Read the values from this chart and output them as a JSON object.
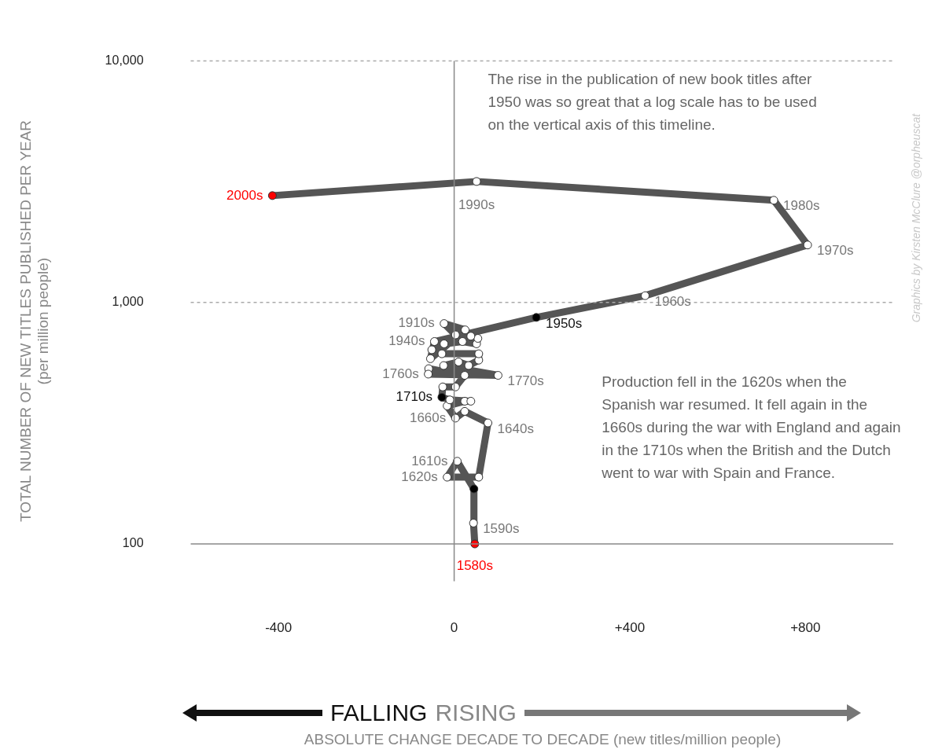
{
  "chart_data": {
    "type": "line",
    "ylabel": "TOTAL NUMBER OF NEW TITLES PUBLISHED PER YEAR\n(per million people)",
    "series": [
      {
        "type": "line",
        "color": "#555555",
        "x": [
          47,
          44,
          45,
          7,
          -16,
          56,
          77,
          24,
          3,
          -16,
          24,
          38,
          -10,
          -28,
          -26,
          3,
          24,
          -58,
          -59,
          100,
          -24,
          10,
          33,
          56,
          56,
          -28,
          -51,
          -23,
          19,
          51,
          54,
          38,
          3,
          -23,
          25,
          -54,
          -45,
          187,
          435,
          805,
          728,
          51,
          -414
        ],
        "values": [
          100,
          122,
          169,
          220,
          189,
          189,
          317,
          354,
          332,
          373,
          390,
          390,
          395,
          405,
          447,
          447,
          499,
          532,
          505,
          499,
          548,
          567,
          548,
          577,
          613,
          613,
          637,
          674,
          689,
          674,
          710,
          725,
          734,
          818,
          770,
          585,
          689,
          867,
          1067,
          1730,
          2650,
          3170,
          2770
        ],
        "colors": [
          "#ff0000",
          "#ffffff",
          "#000000",
          "#ffffff",
          "#ffffff",
          "#ffffff",
          "#ffffff",
          "#ffffff",
          "#ffffff",
          "#ffffff",
          "#ffffff",
          "#ffffff",
          "#ffffff",
          "#000000",
          "#ffffff",
          "#ffffff",
          "#ffffff",
          "#ffffff",
          "#ffffff",
          "#ffffff",
          "#ffffff",
          "#ffffff",
          "#ffffff",
          "#ffffff",
          "#ffffff",
          "#ffffff",
          "#ffffff",
          "#ffffff",
          "#ffffff",
          "#ffffff",
          "#ffffff",
          "#ffffff",
          "#ffffff",
          "#ffffff",
          "#ffffff",
          "#ffffff",
          "#ffffff",
          "#000000",
          "#ffffff",
          "#ffffff",
          "#ffffff",
          "#ffffff",
          "#ff0000"
        ]
      }
    ],
    "marker": "circle",
    "log": "y",
    "legend": false,
    "xlim": [
      -600,
      1000
    ],
    "xticks": [
      -400,
      0,
      {
        "value": 400,
        "label": "+400"
      },
      {
        "value": 800,
        "label": "+800"
      }
    ],
    "ylim": [
      70,
      10000
    ],
    "yticks": [
      100,
      {
        "value": 1000,
        "label": "1,000"
      },
      {
        "value": 10000,
        "label": "10,000"
      }
    ],
    "ref_lines": [
      {
        "axis": "y",
        "value": 100,
        "color": "#888888"
      },
      {
        "axis": "x",
        "value": 0,
        "color": "#888888"
      },
      {
        "axis": "y",
        "value": 1000,
        "color": "#aaaaaa",
        "line_style": "dashed"
      },
      {
        "axis": "y",
        "value": 10000,
        "color": "#aaaaaa",
        "line_style": "dashed"
      }
    ],
    "annotations": [
      "The rise in the publication of new book titles after 1950 was so great that a log scale has to be used on the vertical axis of this timeline.",
      "Production fell in the 1620s when the Spanish war resumed. It fell again in the 1660s during the war with England and again in the 1710s when the British and the Dutch went to war with Spain and France.",
      "Graphics by Kirsten McClure @orpheuscat",
      "FALLING",
      "RISING",
      "ABSOLUTE CHANGE DECADE TO DECADE (new titles/million people)",
      {
        "text": "1580s",
        "x": 47,
        "y": 100
      },
      {
        "text": "1590s",
        "x": 44,
        "y": 122
      },
      {
        "text": "1610s",
        "x": 7,
        "y": 220
      },
      {
        "text": "1620s",
        "x": -16,
        "y": 189
      },
      {
        "text": "1640s",
        "x": 77,
        "y": 317
      },
      {
        "text": "1660s",
        "x": 3,
        "y": 332
      },
      {
        "text": "1710s",
        "x": -28,
        "y": 405
      },
      {
        "text": "1760s",
        "x": -59,
        "y": 505
      },
      {
        "text": "1770s",
        "x": 100,
        "y": 499
      },
      {
        "text": "1910s",
        "x": -23,
        "y": 818
      },
      {
        "text": "1940s",
        "x": -45,
        "y": 689
      },
      {
        "text": "1950s",
        "x": 187,
        "y": 867
      },
      {
        "text": "1960s",
        "x": 435,
        "y": 1067
      },
      {
        "text": "1970s",
        "x": 805,
        "y": 1730
      },
      {
        "text": "1980s",
        "x": 728,
        "y": 2650
      },
      {
        "text": "1990s",
        "x": 51,
        "y": 3170
      },
      {
        "text": "2000s",
        "x": -414,
        "y": 2770
      }
    ]
  }
}
